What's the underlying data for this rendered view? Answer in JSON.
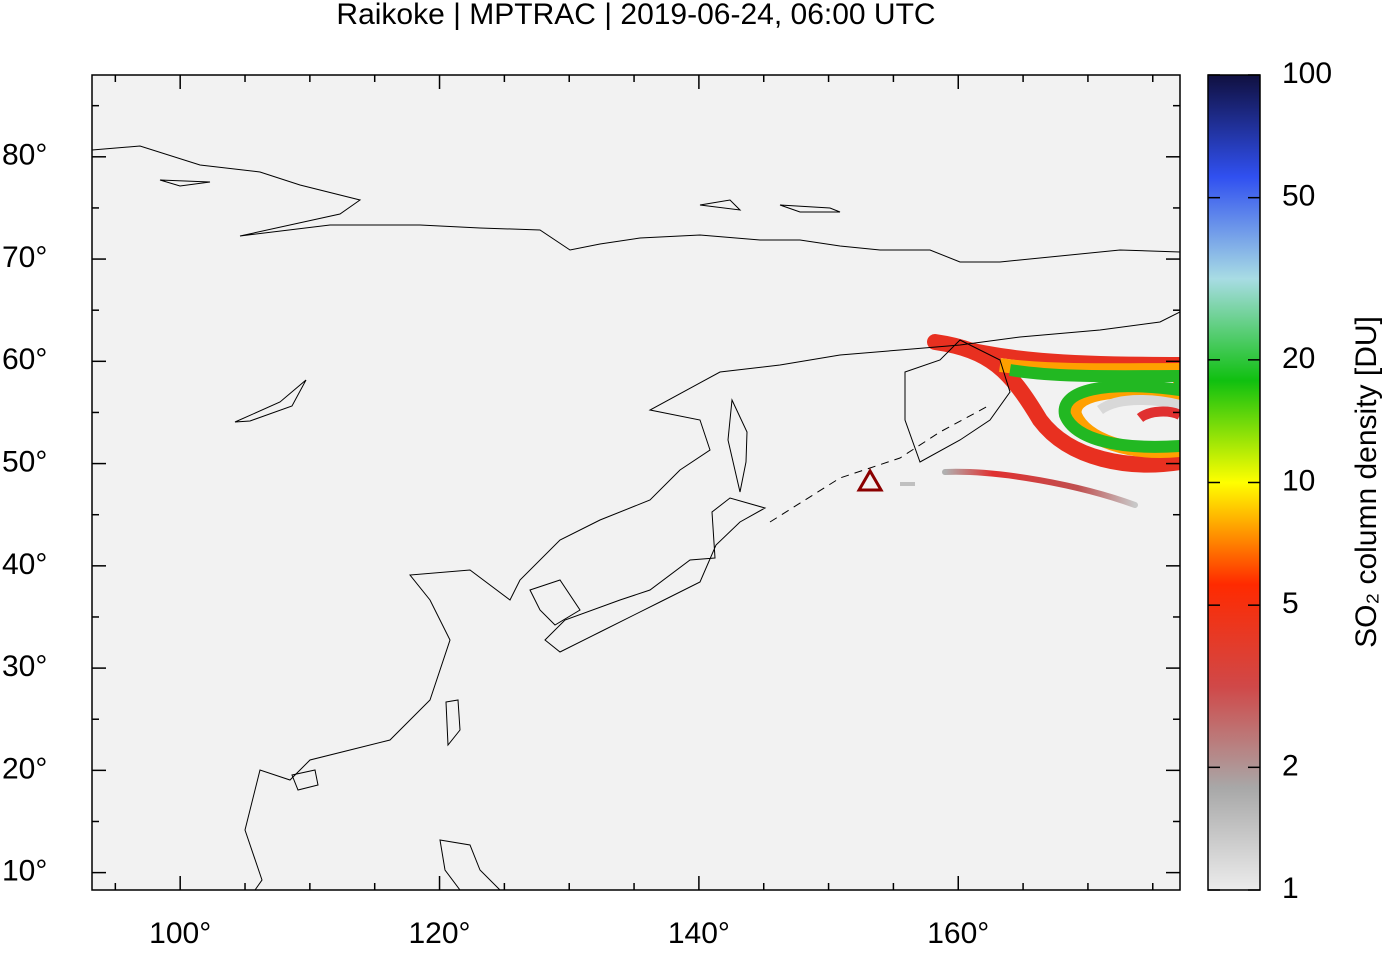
{
  "chart_data": {
    "type": "map",
    "title": "Raikoke | MPTRAC | 2019-06-24, 06:00 UTC",
    "xlim": [
      93.2,
      177.1
    ],
    "ylim": [
      8.3,
      88.0
    ],
    "xticks": [
      {
        "value": 100,
        "label": "100°"
      },
      {
        "value": 120,
        "label": "120°"
      },
      {
        "value": 140,
        "label": "140°"
      },
      {
        "value": 160,
        "label": "160°"
      }
    ],
    "xminorticks": [
      95,
      105,
      110,
      115,
      125,
      130,
      135,
      145,
      150,
      155,
      165,
      170,
      175
    ],
    "yticks": [
      {
        "value": 10,
        "label": "10°"
      },
      {
        "value": 20,
        "label": "20°"
      },
      {
        "value": 30,
        "label": "30°"
      },
      {
        "value": 40,
        "label": "40°"
      },
      {
        "value": 50,
        "label": "50°"
      },
      {
        "value": 60,
        "label": "60°"
      },
      {
        "value": 70,
        "label": "70°"
      },
      {
        "value": 80,
        "label": "80°"
      }
    ],
    "yminorticks": [
      15,
      25,
      35,
      45,
      55,
      65,
      75,
      85
    ],
    "volcano": {
      "lon": 153.2,
      "lat": 48.3,
      "color": "#8b0000"
    },
    "colorbar": {
      "label": "SO₂ column density [DU]",
      "log": true,
      "lim": [
        1,
        100
      ],
      "ticks": [
        1,
        2,
        5,
        10,
        20,
        50,
        100
      ],
      "colors": [
        "#ececec",
        "#a8a8a8",
        "#d04848",
        "#ff2a00",
        "#ffff00",
        "#10c010",
        "#a8dce4",
        "#3050f0",
        "#101040"
      ]
    }
  }
}
